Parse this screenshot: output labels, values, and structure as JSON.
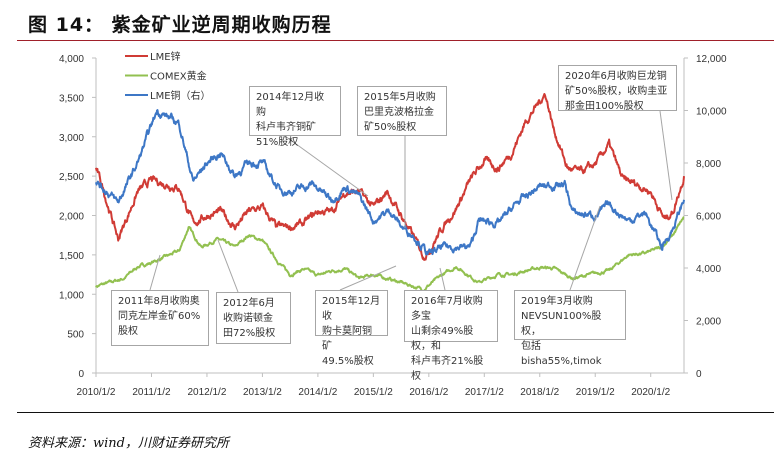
{
  "header": {
    "title": "图 14： 紫金矿业逆周期收购历程"
  },
  "footer": {
    "source": "资料来源：wind，川财证券研究所"
  },
  "chart_data": {
    "type": "line",
    "title": "",
    "x_ticks": [
      "2010/1/2",
      "2011/1/2",
      "2012/1/2",
      "2013/1/2",
      "2014/1/2",
      "2015/1/2",
      "2016/1/2",
      "2017/1/2",
      "2018/1/2",
      "2019/1/2",
      "2020/1/2"
    ],
    "x_range": [
      2010.0,
      2020.6
    ],
    "y_left": {
      "range": [
        0,
        4000
      ],
      "ticks": [
        "0",
        "500",
        "1,000",
        "1,500",
        "2,000",
        "2,500",
        "3,000",
        "3,500",
        "4,000"
      ]
    },
    "y_right": {
      "range": [
        0,
        12000
      ],
      "ticks": [
        "0",
        "2,000",
        "4,000",
        "6,000",
        "8,000",
        "10,000",
        "12,000"
      ]
    },
    "grid": false,
    "legend_position": "top-left",
    "series": [
      {
        "name": "LME锌",
        "color": "#d03b35",
        "axis": "left",
        "x": [
          2010.0,
          2010.1,
          2010.4,
          2010.75,
          2011.0,
          2011.25,
          2011.5,
          2011.75,
          2012.0,
          2012.25,
          2012.5,
          2012.75,
          2013.0,
          2013.25,
          2013.5,
          2013.75,
          2014.0,
          2014.25,
          2014.5,
          2014.75,
          2015.0,
          2015.25,
          2015.5,
          2015.75,
          2015.9,
          2016.0,
          2016.25,
          2016.5,
          2016.75,
          2017.0,
          2017.25,
          2017.5,
          2017.75,
          2018.0,
          2018.1,
          2018.25,
          2018.5,
          2018.75,
          2019.0,
          2019.25,
          2019.5,
          2019.75,
          2020.0,
          2020.25,
          2020.4,
          2020.6
        ],
        "values": [
          2600,
          2400,
          1700,
          2300,
          2450,
          2400,
          2350,
          1900,
          2000,
          2050,
          1850,
          2050,
          2100,
          1850,
          1850,
          1900,
          2050,
          2050,
          2300,
          2300,
          2100,
          2300,
          2000,
          1700,
          1500,
          1550,
          1850,
          2100,
          2450,
          2700,
          2600,
          2800,
          3200,
          3450,
          3550,
          3100,
          2600,
          2550,
          2650,
          2900,
          2450,
          2400,
          2300,
          1950,
          2050,
          2500
        ]
      },
      {
        "name": "COMEX黄金",
        "color": "#92c050",
        "axis": "left",
        "x": [
          2010.0,
          2010.5,
          2010.75,
          2011.0,
          2011.5,
          2011.67,
          2011.9,
          2012.2,
          2012.5,
          2012.75,
          2013.0,
          2013.3,
          2013.5,
          2013.75,
          2014.0,
          2014.25,
          2014.5,
          2014.75,
          2015.0,
          2015.5,
          2015.9,
          2016.25,
          2016.5,
          2016.9,
          2017.25,
          2017.5,
          2017.75,
          2018.0,
          2018.25,
          2018.6,
          2018.9,
          2019.25,
          2019.6,
          2019.9,
          2020.2,
          2020.4,
          2020.6
        ],
        "values": [
          1100,
          1200,
          1350,
          1400,
          1550,
          1850,
          1600,
          1700,
          1600,
          1750,
          1680,
          1400,
          1250,
          1320,
          1240,
          1300,
          1320,
          1200,
          1250,
          1150,
          1060,
          1250,
          1350,
          1150,
          1250,
          1250,
          1300,
          1340,
          1330,
          1200,
          1250,
          1300,
          1500,
          1520,
          1600,
          1750,
          1980
        ]
      },
      {
        "name": "LME铜（右）",
        "color": "#3d77c6",
        "axis": "right",
        "x": [
          2010.0,
          2010.4,
          2010.75,
          2011.1,
          2011.5,
          2011.75,
          2012.0,
          2012.25,
          2012.5,
          2012.75,
          2013.0,
          2013.3,
          2013.5,
          2013.9,
          2014.25,
          2014.5,
          2014.75,
          2015.0,
          2015.3,
          2015.5,
          2015.75,
          2016.0,
          2016.25,
          2016.75,
          2016.9,
          2017.25,
          2017.6,
          2018.0,
          2018.45,
          2018.6,
          2019.0,
          2019.25,
          2019.6,
          2019.9,
          2020.2,
          2020.4,
          2020.6
        ],
        "values": [
          7300,
          6500,
          8000,
          10000,
          9500,
          7300,
          8000,
          8400,
          7500,
          8000,
          8000,
          7000,
          6900,
          7200,
          6600,
          7100,
          6700,
          5800,
          6200,
          5600,
          5200,
          4500,
          4800,
          4800,
          5800,
          5700,
          6500,
          7100,
          7200,
          6100,
          6000,
          6400,
          5800,
          6100,
          4800,
          5500,
          6600
        ]
      }
    ],
    "annotations": [
      {
        "text": "2014年12月收购\n科卢韦齐铜矿\n51%股权"
      },
      {
        "text": "2015年5月收购\n巴里克波格拉金\n矿50%股权"
      },
      {
        "text": "2020年6月收购巨龙铜\n矿50%股权，收购圭亚\n那金田100%股权"
      },
      {
        "text": "2011年8月收购奥\n同克左岸金矿60%\n股权"
      },
      {
        "text": "2012年6月\n收购诺顿金\n田72%股权"
      },
      {
        "text": "2015年12月收\n购卡莫阿铜矿\n49.5%股权"
      },
      {
        "text": "2016年7月收购多宝\n山剩余49%股权，和\n科卢韦齐21%股权"
      },
      {
        "text": "2019年3月收购\nNEVSUN100%股权，\n包括bisha55%,timok"
      }
    ]
  }
}
